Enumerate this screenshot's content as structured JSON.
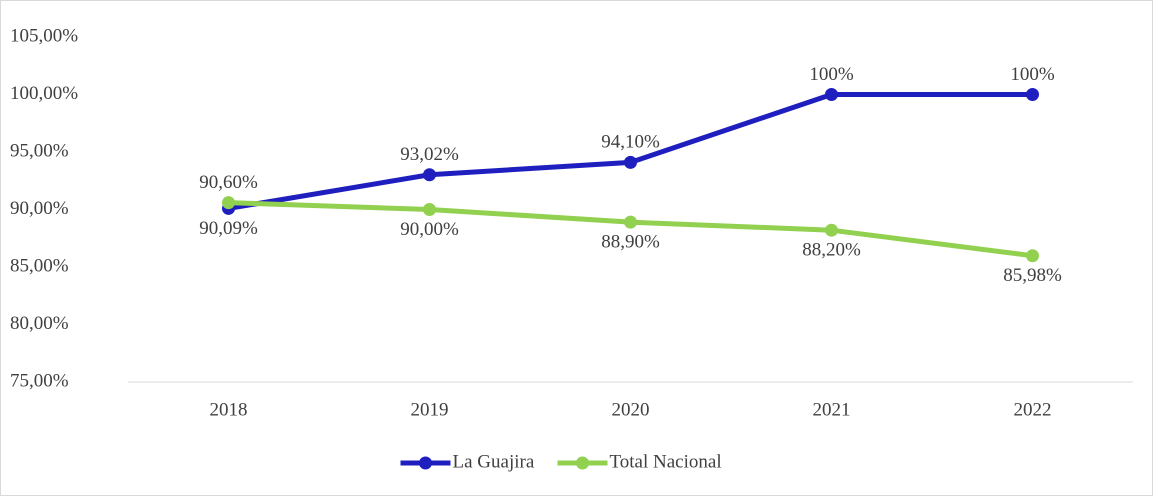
{
  "chart_data": {
    "type": "line",
    "categories": [
      "2018",
      "2019",
      "2020",
      "2021",
      "2022"
    ],
    "series": [
      {
        "name": "La Guajira",
        "color": "#1f1fbf",
        "values": [
          90.09,
          93.02,
          94.1,
          100,
          100
        ],
        "value_labels": [
          "90,09%",
          "93,02%",
          "94,10%",
          "100%",
          "100%"
        ]
      },
      {
        "name": "Total Nacional",
        "color": "#92d050",
        "values": [
          90.6,
          90.0,
          88.9,
          88.2,
          85.98
        ],
        "value_labels": [
          "90,60%",
          "90,00%",
          "88,90%",
          "88,20%",
          "85,98%"
        ]
      }
    ],
    "ylim": [
      75,
      105
    ],
    "yticks": [
      {
        "value": 75,
        "label": "75,00%"
      },
      {
        "value": 80,
        "label": "80,00%"
      },
      {
        "value": 85,
        "label": "85,00%"
      },
      {
        "value": 90,
        "label": "90,00%"
      },
      {
        "value": 95,
        "label": "95,00%"
      },
      {
        "value": 100,
        "label": "100,00%"
      },
      {
        "value": 105,
        "label": "105,00%"
      }
    ],
    "grid": false,
    "legend": "bottom"
  }
}
